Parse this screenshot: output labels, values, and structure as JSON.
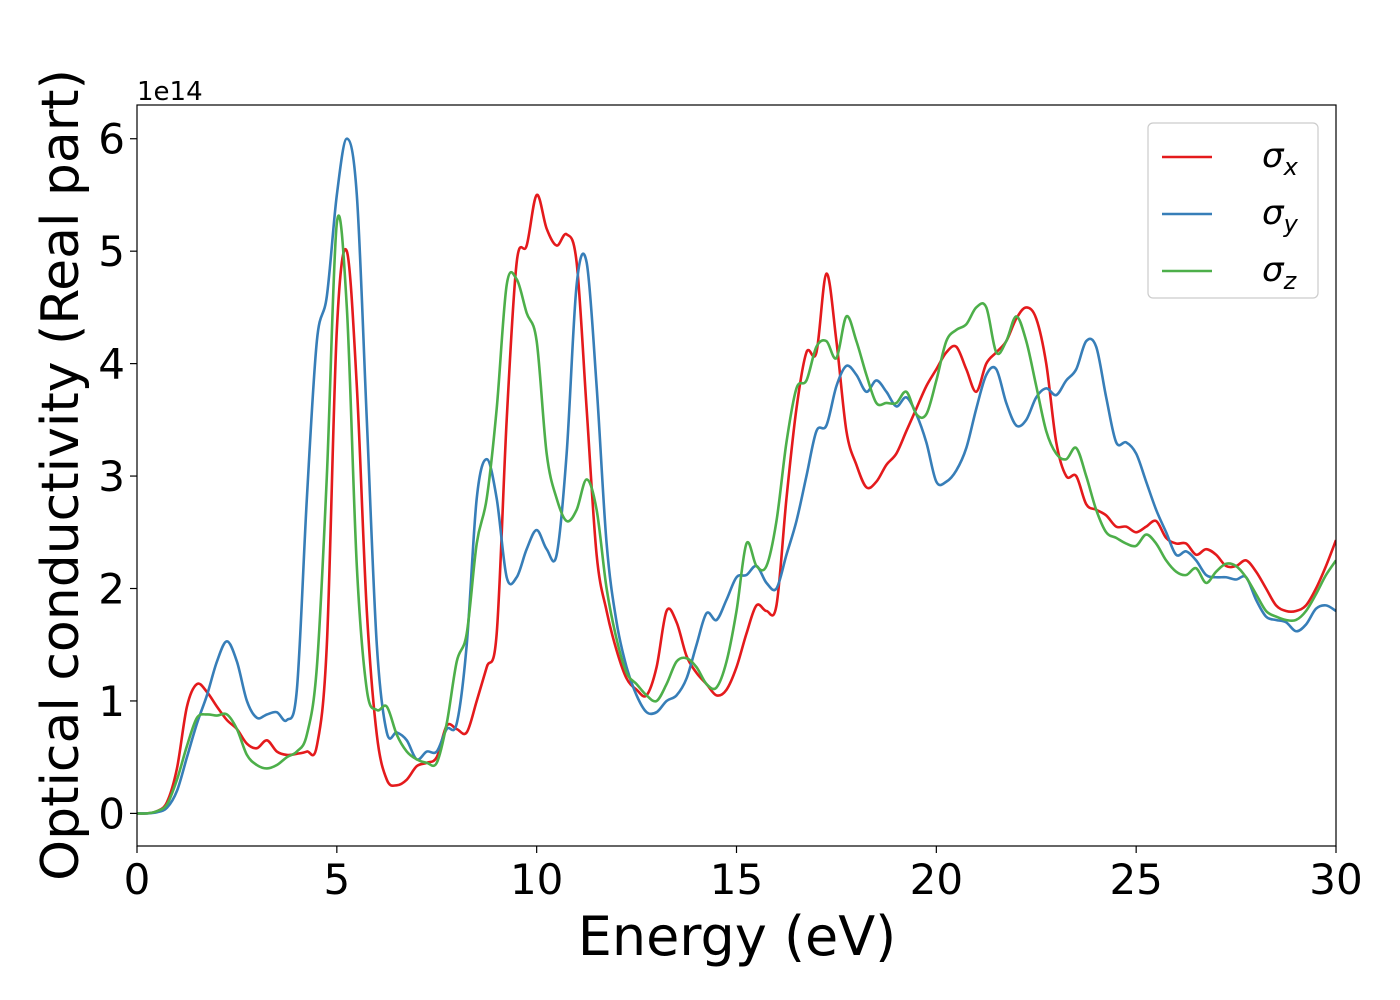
{
  "chart_data": {
    "type": "line",
    "xlabel": "Energy (eV)",
    "ylabel": "Optical conductivity (Real part)",
    "offset_label": "1e14",
    "xlim": [
      0,
      30
    ],
    "ylim": [
      -0.29,
      6.3
    ],
    "xticks": [
      0,
      5,
      10,
      15,
      20,
      25,
      30
    ],
    "yticks": [
      0,
      1,
      2,
      3,
      4,
      5,
      6
    ],
    "legend": "upper right",
    "grid": false,
    "x": [
      0,
      0.25,
      0.5,
      0.75,
      1,
      1.25,
      1.5,
      1.75,
      2,
      2.25,
      2.5,
      2.75,
      3,
      3.25,
      3.5,
      3.75,
      4,
      4.25,
      4.5,
      4.75,
      5,
      5.25,
      5.5,
      5.75,
      6,
      6.25,
      6.5,
      6.75,
      7,
      7.25,
      7.5,
      7.75,
      8,
      8.25,
      8.5,
      8.75,
      9,
      9.25,
      9.5,
      9.75,
      10,
      10.25,
      10.5,
      10.75,
      11,
      11.25,
      11.5,
      11.75,
      12,
      12.25,
      12.5,
      12.75,
      13,
      13.25,
      13.5,
      13.75,
      14,
      14.25,
      14.5,
      14.75,
      15,
      15.25,
      15.5,
      15.75,
      16,
      16.25,
      16.5,
      16.75,
      17,
      17.25,
      17.5,
      17.75,
      18,
      18.25,
      18.5,
      18.75,
      19,
      19.25,
      19.5,
      19.75,
      20,
      20.25,
      20.5,
      20.75,
      21,
      21.25,
      21.5,
      21.75,
      22,
      22.25,
      22.5,
      22.75,
      23,
      23.25,
      23.5,
      23.75,
      24,
      24.25,
      24.5,
      24.75,
      25,
      25.25,
      25.5,
      25.75,
      26,
      26.25,
      26.5,
      26.75,
      27,
      27.25,
      27.5,
      27.75,
      28,
      28.25,
      28.5,
      28.75,
      29,
      29.25,
      29.5,
      29.75,
      30
    ],
    "series": [
      {
        "name": "σx",
        "color": "#e41a1c",
        "values": [
          0,
          0,
          0.02,
          0.1,
          0.4,
          0.95,
          1.15,
          1.08,
          0.95,
          0.83,
          0.75,
          0.62,
          0.58,
          0.65,
          0.55,
          0.52,
          0.53,
          0.55,
          0.6,
          1.5,
          4.3,
          5.0,
          3.8,
          1.8,
          0.7,
          0.3,
          0.25,
          0.3,
          0.42,
          0.45,
          0.5,
          0.78,
          0.75,
          0.72,
          1.0,
          1.3,
          1.6,
          3.5,
          4.9,
          5.05,
          5.5,
          5.2,
          5.05,
          5.15,
          4.9,
          3.6,
          2.3,
          1.8,
          1.45,
          1.2,
          1.1,
          1.05,
          1.3,
          1.8,
          1.7,
          1.4,
          1.25,
          1.15,
          1.05,
          1.1,
          1.3,
          1.6,
          1.85,
          1.8,
          1.85,
          2.8,
          3.6,
          4.1,
          4.1,
          4.8,
          4.2,
          3.4,
          3.1,
          2.9,
          2.95,
          3.1,
          3.2,
          3.4,
          3.6,
          3.8,
          3.95,
          4.1,
          4.15,
          3.95,
          3.75,
          4.0,
          4.1,
          4.2,
          4.4,
          4.5,
          4.4,
          4.0,
          3.3,
          3.0,
          3.0,
          2.75,
          2.7,
          2.65,
          2.55,
          2.55,
          2.5,
          2.55,
          2.6,
          2.45,
          2.4,
          2.4,
          2.3,
          2.35,
          2.3,
          2.2,
          2.2,
          2.25,
          2.15,
          2.0,
          1.85,
          1.8,
          1.8,
          1.85,
          2.0,
          2.2,
          2.43
        ]
      },
      {
        "name": "σy",
        "color": "#377eb8",
        "values": [
          0,
          0,
          0.01,
          0.05,
          0.2,
          0.5,
          0.8,
          1.05,
          1.35,
          1.53,
          1.35,
          1.0,
          0.85,
          0.88,
          0.9,
          0.83,
          1.1,
          2.8,
          4.2,
          4.6,
          5.5,
          6.0,
          5.5,
          3.5,
          1.5,
          0.72,
          0.72,
          0.65,
          0.48,
          0.55,
          0.55,
          0.75,
          0.8,
          1.5,
          2.8,
          3.15,
          2.8,
          2.1,
          2.1,
          2.35,
          2.52,
          2.35,
          2.3,
          3.2,
          4.7,
          4.9,
          3.8,
          2.4,
          1.7,
          1.3,
          1.05,
          0.9,
          0.9,
          1.0,
          1.05,
          1.2,
          1.5,
          1.78,
          1.72,
          1.9,
          2.1,
          2.12,
          2.2,
          2.05,
          2.0,
          2.3,
          2.6,
          3.0,
          3.4,
          3.45,
          3.8,
          3.98,
          3.9,
          3.75,
          3.85,
          3.75,
          3.62,
          3.7,
          3.55,
          3.3,
          2.95,
          2.95,
          3.05,
          3.25,
          3.6,
          3.9,
          3.95,
          3.65,
          3.45,
          3.5,
          3.7,
          3.78,
          3.72,
          3.85,
          3.95,
          4.2,
          4.15,
          3.7,
          3.3,
          3.3,
          3.2,
          2.95,
          2.7,
          2.5,
          2.3,
          2.33,
          2.25,
          2.12,
          2.1,
          2.1,
          2.08,
          2.1,
          1.9,
          1.75,
          1.72,
          1.7,
          1.62,
          1.68,
          1.82,
          1.85,
          1.8
        ]
      },
      {
        "name": "σz",
        "color": "#4daf4a",
        "values": [
          0,
          0,
          0.02,
          0.08,
          0.3,
          0.6,
          0.85,
          0.88,
          0.87,
          0.88,
          0.75,
          0.52,
          0.43,
          0.4,
          0.43,
          0.5,
          0.55,
          0.7,
          1.3,
          3.0,
          5.25,
          4.5,
          2.2,
          1.1,
          0.92,
          0.95,
          0.7,
          0.55,
          0.48,
          0.45,
          0.45,
          0.8,
          1.35,
          1.6,
          2.4,
          2.8,
          3.6,
          4.7,
          4.75,
          4.45,
          4.2,
          3.2,
          2.8,
          2.6,
          2.7,
          2.97,
          2.7,
          2.0,
          1.55,
          1.25,
          1.15,
          1.05,
          1.0,
          1.15,
          1.35,
          1.38,
          1.3,
          1.15,
          1.12,
          1.35,
          1.8,
          2.4,
          2.2,
          2.2,
          2.6,
          3.3,
          3.78,
          3.85,
          4.15,
          4.2,
          4.05,
          4.42,
          4.2,
          3.9,
          3.65,
          3.65,
          3.65,
          3.75,
          3.55,
          3.55,
          3.85,
          4.2,
          4.3,
          4.35,
          4.5,
          4.5,
          4.1,
          4.2,
          4.42,
          4.2,
          3.8,
          3.4,
          3.2,
          3.15,
          3.25,
          3.0,
          2.7,
          2.5,
          2.45,
          2.4,
          2.38,
          2.48,
          2.4,
          2.25,
          2.15,
          2.12,
          2.18,
          2.05,
          2.15,
          2.22,
          2.2,
          2.1,
          1.95,
          1.8,
          1.75,
          1.72,
          1.72,
          1.8,
          1.95,
          2.12,
          2.25
        ]
      }
    ]
  }
}
